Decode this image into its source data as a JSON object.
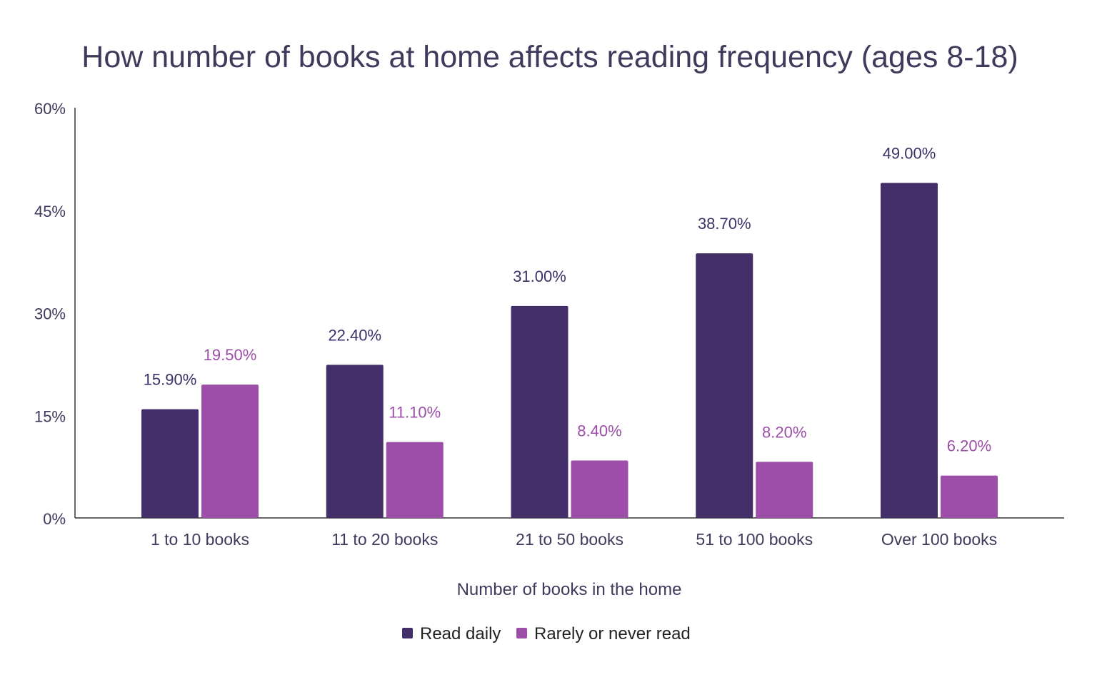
{
  "chart_data": {
    "type": "bar",
    "title": "How number of books at home affects reading frequency (ages 8-18)",
    "xlabel": "Number of books in the home",
    "ylabel": "",
    "ylim": [
      0,
      60
    ],
    "yticks": [
      "0%",
      "15%",
      "30%",
      "45%",
      "60%"
    ],
    "ytick_values": [
      0,
      15,
      30,
      45,
      60
    ],
    "grid": false,
    "legend_position": "bottom",
    "categories": [
      "1 to 10 books",
      "11 to 20 books",
      "21 to 50 books",
      "51 to 100 books",
      "Over 100 books"
    ],
    "series": [
      {
        "name": "Read daily",
        "color": "#432e6a",
        "values": [
          15.9,
          22.4,
          31.0,
          38.7,
          49.0
        ],
        "labels": [
          "15.90%",
          "22.40%",
          "31.00%",
          "38.70%",
          "49.00%"
        ]
      },
      {
        "name": "Rarely or never read",
        "color": "#9c4ea8",
        "values": [
          19.5,
          11.1,
          8.4,
          8.2,
          6.2
        ],
        "labels": [
          "19.50%",
          "11.10%",
          "8.40%",
          "8.20%",
          "6.20%"
        ]
      }
    ]
  }
}
